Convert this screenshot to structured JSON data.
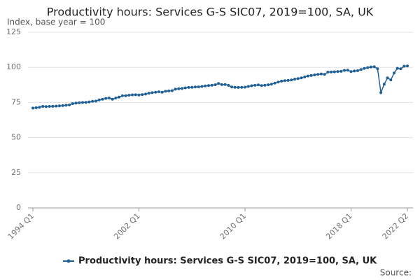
{
  "chart_data": {
    "type": "line",
    "title": "Productivity hours: Services G-S SIC07, 2019=100, SA, UK",
    "subtitle": "Index, base year = 100",
    "source": "Source:",
    "categories": [
      "1994 Q1",
      null,
      null,
      null,
      null,
      null,
      null,
      null,
      null,
      null,
      null,
      null,
      null,
      null,
      null,
      null,
      null,
      null,
      null,
      null,
      null,
      null,
      null,
      null,
      null,
      null,
      null,
      null,
      null,
      null,
      null,
      null,
      "2002 Q1",
      null,
      null,
      null,
      null,
      null,
      null,
      null,
      null,
      null,
      null,
      null,
      null,
      null,
      null,
      null,
      null,
      null,
      null,
      null,
      null,
      null,
      null,
      null,
      null,
      null,
      null,
      null,
      null,
      null,
      null,
      null,
      "2010 Q1",
      null,
      null,
      null,
      null,
      null,
      null,
      null,
      null,
      null,
      null,
      null,
      null,
      null,
      null,
      null,
      null,
      null,
      null,
      null,
      null,
      null,
      null,
      null,
      null,
      null,
      null,
      null,
      null,
      null,
      null,
      null,
      "2018 Q1",
      null,
      null,
      null,
      null,
      null,
      null,
      null,
      null,
      null,
      null,
      null,
      null,
      null,
      null,
      null,
      null,
      "2022 Q2"
    ],
    "series": [
      {
        "name": "Productivity hours: Services G-S SIC07, 2019=100, SA, UK",
        "color": "#206095",
        "values": [
          71,
          71.3,
          71.6,
          72.2,
          72.1,
          72.2,
          72.3,
          72.4,
          72.6,
          72.8,
          73.0,
          73.3,
          74.2,
          74.6,
          74.8,
          75.0,
          75.1,
          75.4,
          75.8,
          76.0,
          76.8,
          77.3,
          77.9,
          78.2,
          77.3,
          78.2,
          78.8,
          79.8,
          79.8,
          80.2,
          80.4,
          80.5,
          80.3,
          80.6,
          81.0,
          81.6,
          82.0,
          82.3,
          82.6,
          82.3,
          83.0,
          83.2,
          83.4,
          84.5,
          84.8,
          85.0,
          85.4,
          85.7,
          85.8,
          86.0,
          86.1,
          86.4,
          86.8,
          87.0,
          87.3,
          87.6,
          88.5,
          87.7,
          87.8,
          87.2,
          86.0,
          85.8,
          85.7,
          85.8,
          85.9,
          86.4,
          86.9,
          87.2,
          87.5,
          87.0,
          87.3,
          87.6,
          88.0,
          88.8,
          89.5,
          90.2,
          90.5,
          90.7,
          91.0,
          91.6,
          92.0,
          92.5,
          93.2,
          93.8,
          94.2,
          94.6,
          95.0,
          95.3,
          95.0,
          96.6,
          96.7,
          96.8,
          97.0,
          97.2,
          97.8,
          98.0,
          97.0,
          97.4,
          97.6,
          98.5,
          99.2,
          99.8,
          100.2,
          100.4,
          99.0,
          82.0,
          88.0,
          92.5,
          91.0,
          96.0,
          99.3,
          99.0,
          100.8,
          101.0
        ]
      }
    ],
    "ylim": [
      0,
      125
    ],
    "yticks": [
      0,
      25,
      50,
      75,
      100,
      125
    ],
    "grid": true,
    "legend": "bottom"
  }
}
